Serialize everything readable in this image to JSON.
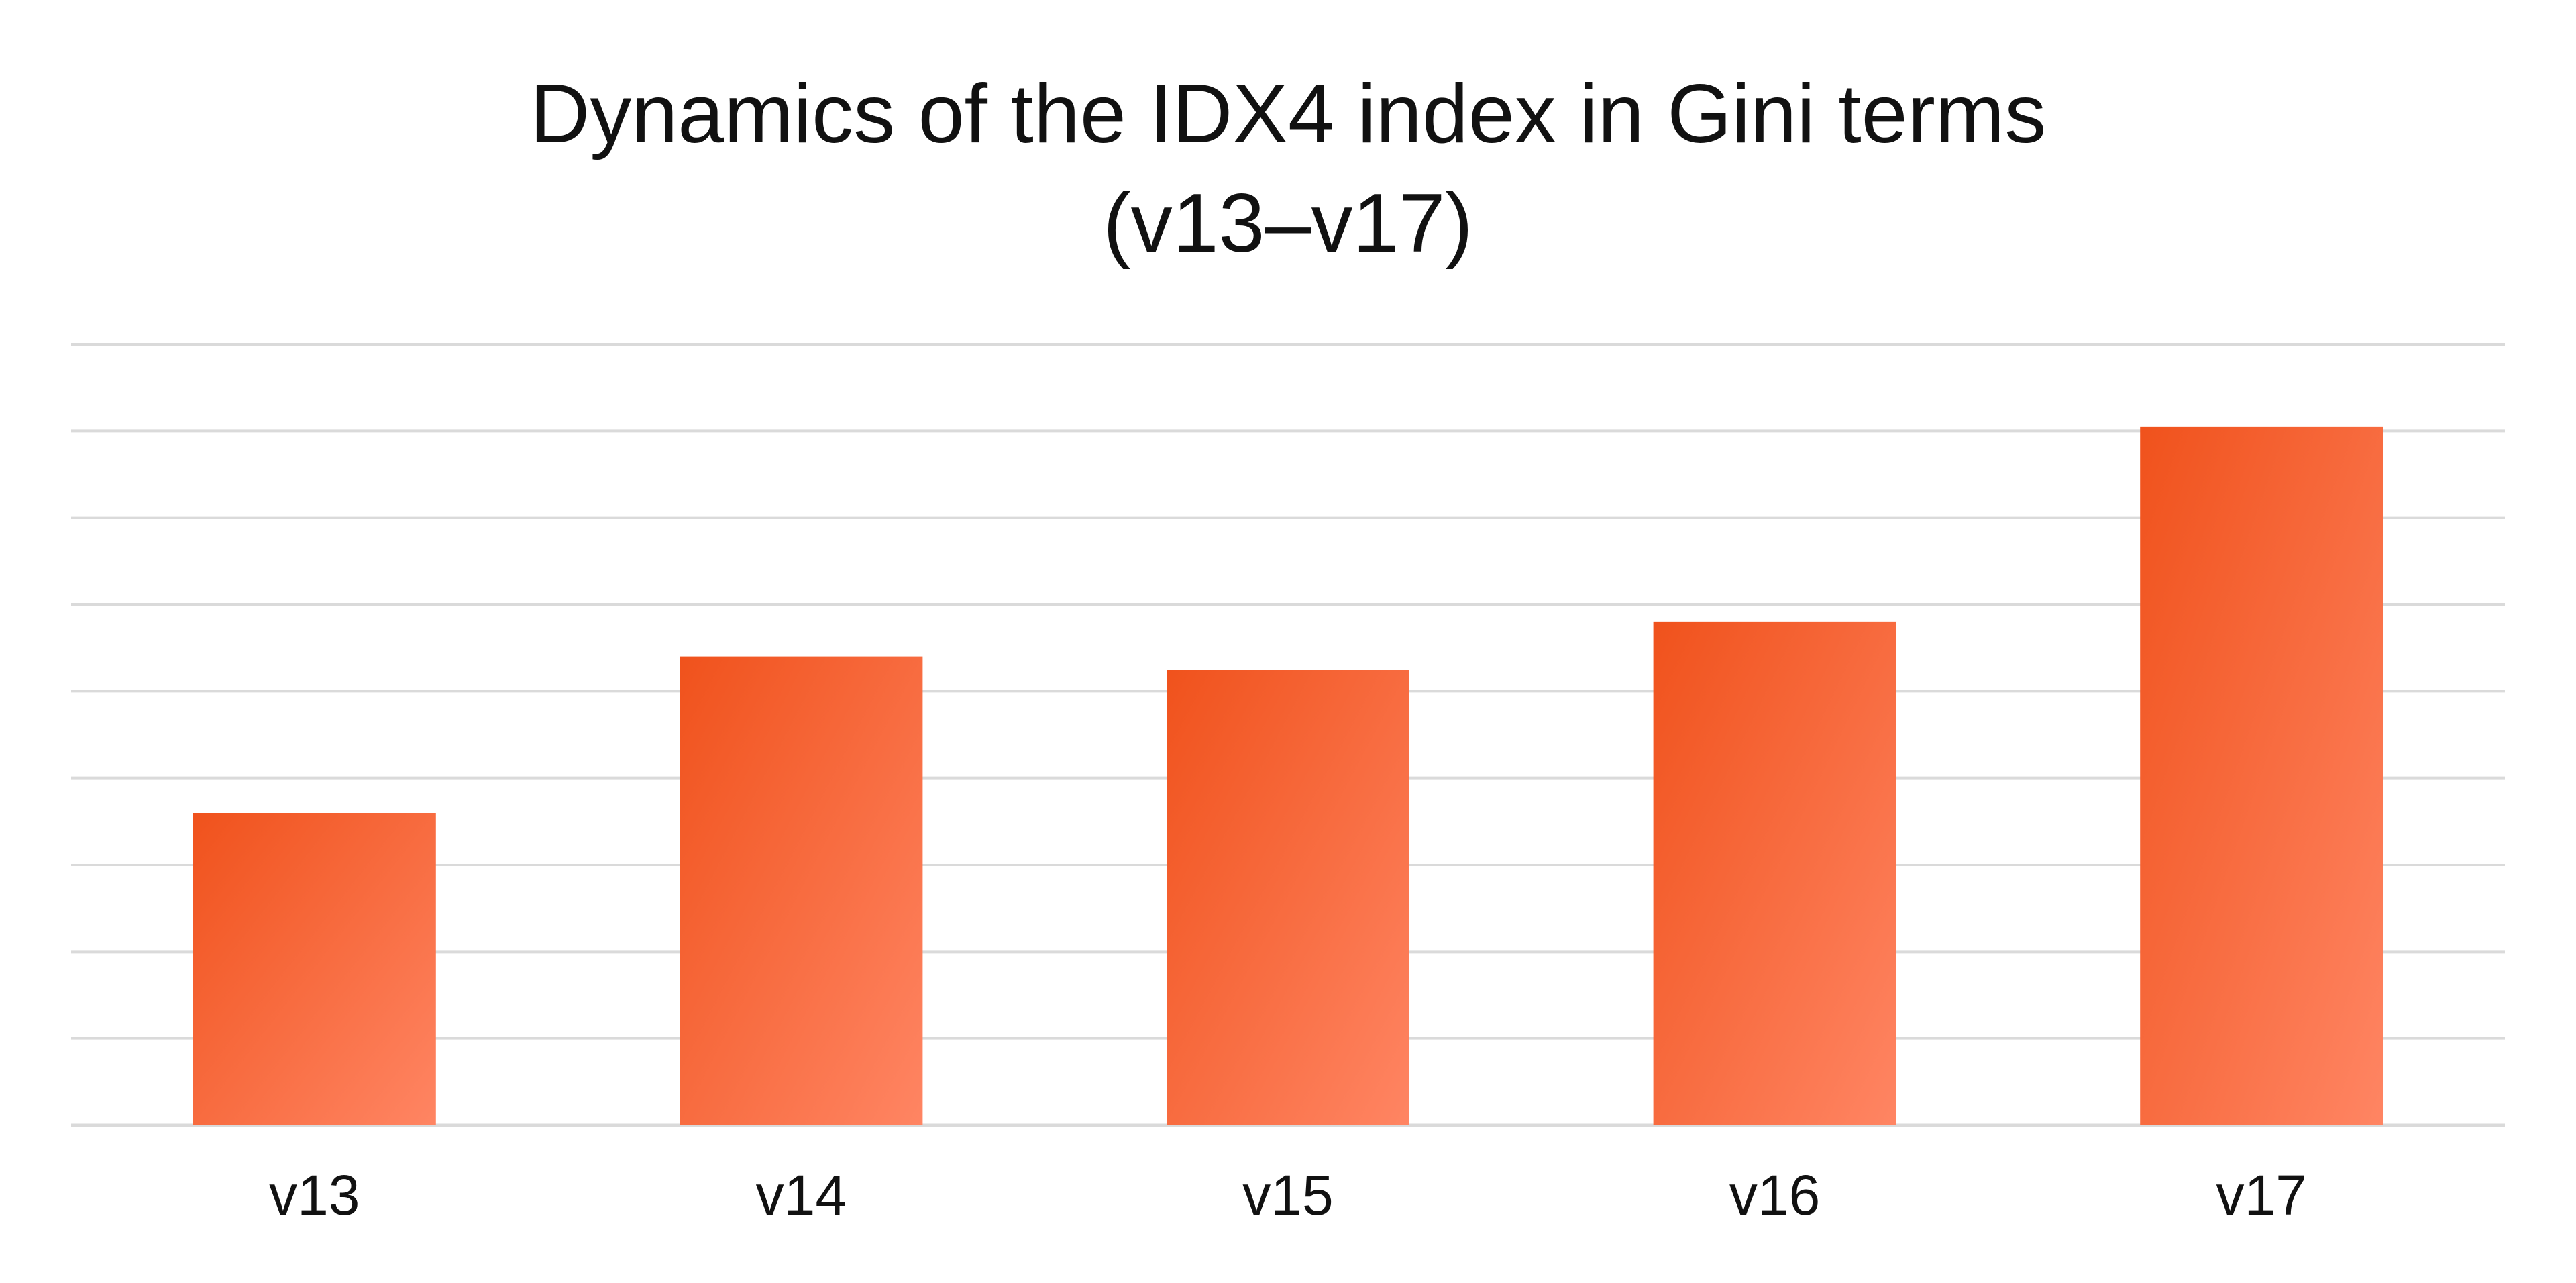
{
  "chart_data": {
    "type": "bar",
    "title_lines": [
      "Dynamics of the IDX4 index in Gini terms",
      "(v13–v17)"
    ],
    "xlabel": "",
    "ylabel": "",
    "categories": [
      "v13",
      "v14",
      "v15",
      "v16",
      "v17"
    ],
    "values": [
      3.6,
      5.4,
      5.25,
      5.8,
      8.05
    ],
    "ylim": [
      0,
      9
    ],
    "gridlines": true,
    "y_tick_labels_visible": false,
    "legend": "none",
    "colors": {
      "bar_gradient_start": "#f0521c",
      "bar_gradient_end": "#ff8563",
      "grid": "#dadada",
      "text": "#111111"
    }
  }
}
